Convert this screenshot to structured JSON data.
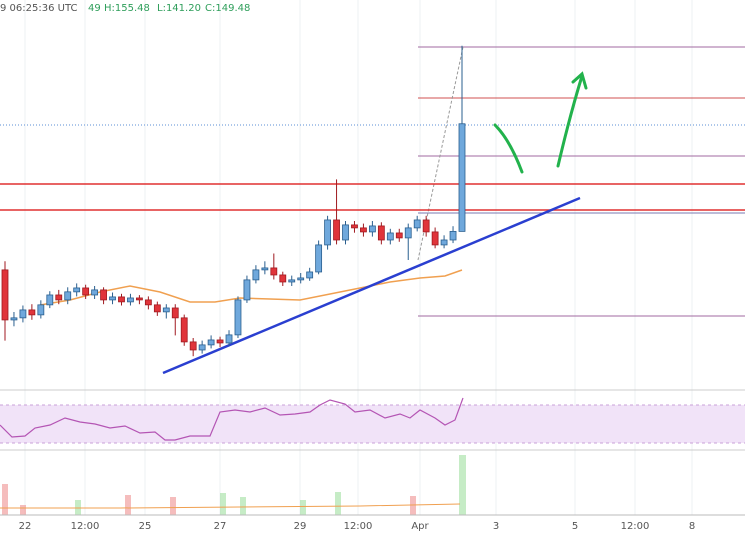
{
  "chart_data": {
    "type": "candlestick",
    "header": [
      "9 06:25:36 UTC",
      "49",
      "H:155.48",
      "L:141.20",
      "C:149.48"
    ],
    "x_labels": [
      "22",
      "12:00",
      "25",
      "27",
      "29",
      "12:00",
      "Apr",
      "3",
      "5",
      "12:00",
      "8"
    ],
    "ylim": [
      129,
      159
    ],
    "open": [
      138.24,
      134.39,
      134.55,
      135.16,
      134.78,
      135.55,
      136.31,
      135.93,
      136.55,
      136.85,
      136.31,
      136.7,
      135.93,
      136.16,
      135.78,
      136.08,
      135.93,
      135.55,
      135.01,
      135.31,
      134.55,
      132.7,
      132.08,
      132.47,
      132.85,
      132.62,
      133.24,
      135.93,
      137.47,
      138.24,
      138.39,
      137.85,
      137.31,
      137.47,
      137.62,
      138.08,
      140.16,
      142.08,
      140.54,
      141.7,
      141.47,
      141.16,
      141.62,
      140.54,
      141.08,
      140.7,
      141.47,
      142.08,
      141.16,
      140.16,
      140.54,
      141.2
    ],
    "close": [
      134.39,
      134.55,
      135.16,
      134.78,
      135.55,
      136.31,
      135.93,
      136.55,
      136.85,
      136.31,
      136.7,
      135.93,
      136.16,
      135.78,
      136.08,
      135.93,
      135.55,
      135.01,
      135.31,
      134.55,
      132.7,
      132.08,
      132.47,
      132.85,
      132.62,
      133.24,
      135.93,
      137.47,
      138.24,
      138.39,
      137.85,
      137.31,
      137.47,
      137.62,
      138.08,
      140.16,
      142.08,
      140.54,
      141.7,
      141.47,
      141.16,
      141.62,
      140.54,
      141.08,
      140.7,
      141.47,
      142.08,
      141.16,
      140.16,
      140.54,
      141.2,
      149.48
    ],
    "high": [
      138.9,
      135.0,
      135.5,
      135.6,
      135.9,
      136.6,
      136.7,
      136.9,
      137.2,
      137.1,
      137.0,
      136.9,
      136.5,
      136.4,
      136.4,
      136.3,
      136.2,
      135.8,
      135.6,
      135.6,
      134.8,
      133.0,
      132.8,
      133.2,
      133.1,
      133.6,
      136.2,
      137.8,
      138.6,
      138.9,
      139.5,
      138.1,
      137.8,
      138.0,
      138.4,
      140.5,
      142.4,
      145.2,
      142.0,
      142.0,
      141.8,
      142.0,
      141.9,
      141.4,
      141.4,
      141.8,
      142.4,
      142.4,
      141.5,
      140.9,
      141.6,
      155.48
    ],
    "low": [
      132.8,
      133.9,
      134.2,
      134.4,
      134.5,
      135.3,
      135.6,
      135.6,
      136.2,
      136.0,
      136.0,
      135.6,
      135.6,
      135.5,
      135.5,
      135.6,
      135.2,
      134.7,
      134.5,
      133.2,
      132.4,
      131.6,
      131.8,
      132.2,
      132.3,
      132.4,
      133.0,
      135.7,
      137.2,
      137.9,
      137.5,
      137.0,
      137.0,
      137.2,
      137.4,
      137.9,
      139.8,
      140.2,
      140.2,
      141.1,
      140.8,
      140.8,
      140.2,
      140.2,
      140.4,
      139.0,
      141.2,
      140.8,
      139.9,
      139.9,
      140.3,
      141.2
    ],
    "up_color": "#6fa8dc",
    "down_color": "#e0343a"
  }
}
